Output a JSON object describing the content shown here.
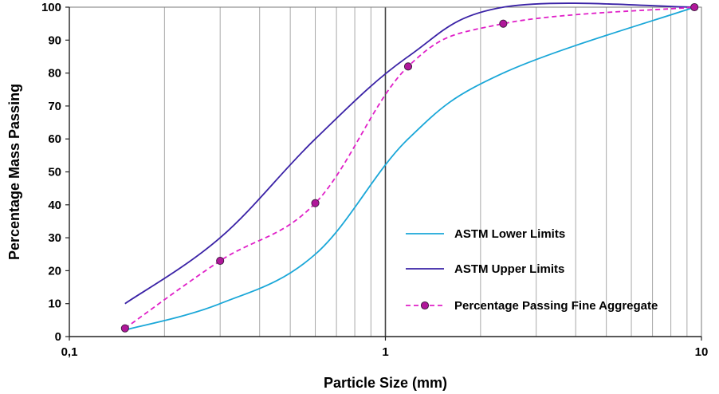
{
  "chart_data": {
    "type": "line",
    "title": "",
    "xlabel": "Particle Size (mm)",
    "ylabel": "Percentage Mass Passing",
    "x_scale": "log",
    "xlim": [
      0.1,
      10
    ],
    "ylim": [
      0,
      100
    ],
    "x_tick_labels": [
      "0,1",
      "1",
      "10"
    ],
    "y_ticks": [
      0,
      10,
      20,
      30,
      40,
      50,
      60,
      70,
      80,
      90,
      100
    ],
    "grid": "vertical minor log gridlines",
    "legend_position": "right-bottom",
    "series": [
      {
        "name": "ASTM Lower Limits",
        "color": "#1aa7d8",
        "style": "solid",
        "markers": false,
        "x": [
          0.15,
          0.3,
          0.6,
          1.18,
          2.36,
          9.5
        ],
        "y": [
          2,
          10,
          25,
          60,
          80,
          100
        ]
      },
      {
        "name": "ASTM Upper Limits",
        "color": "#3a22a6",
        "style": "solid",
        "markers": false,
        "x": [
          0.15,
          0.3,
          0.6,
          1.18,
          2.36,
          9.5
        ],
        "y": [
          10,
          30,
          60,
          85,
          100,
          100
        ]
      },
      {
        "name": "Percentage Passing Fine Aggregate",
        "color": "#e020c8",
        "marker_color": "#b0179a",
        "style": "dashed",
        "markers": true,
        "x": [
          0.15,
          0.3,
          0.6,
          1.18,
          2.36,
          9.5
        ],
        "y": [
          2.5,
          23,
          40.5,
          82,
          95,
          100
        ]
      }
    ]
  }
}
